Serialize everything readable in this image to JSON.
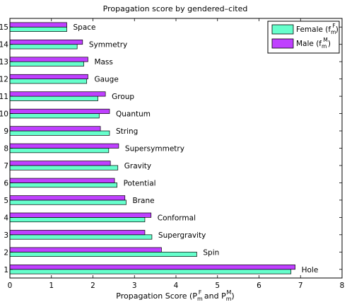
{
  "chart_data": {
    "type": "bar",
    "orientation": "horizontal",
    "title": "Propagation score by gendered–cited",
    "xlabel": {
      "prefix": "Propagation Score (P",
      "sub1": "m",
      "sup1": "F",
      "middle": " and P",
      "sub2": "m",
      "sup2": "M",
      "suffix": ")"
    },
    "ylabel": "",
    "xlim": [
      0,
      8
    ],
    "xticks": [
      0,
      1,
      2,
      3,
      4,
      5,
      6,
      7,
      8
    ],
    "ylim": [
      0.5,
      15.5
    ],
    "yticks": [
      1,
      2,
      3,
      4,
      5,
      6,
      7,
      8,
      9,
      10,
      11,
      12,
      13,
      14,
      15
    ],
    "grid": false,
    "legend_position": "top-right",
    "categories": [
      "Hole",
      "Spin",
      "Supergravity",
      "Conformal",
      "Brane",
      "Potential",
      "Gravity",
      "Supersymmetry",
      "String",
      "Quantum",
      "Group",
      "Gauge",
      "Mass",
      "Symmetry",
      "Space"
    ],
    "series": [
      {
        "name": "Female (f",
        "name_sub": "m",
        "name_sup": "F",
        "name_suffix": ")",
        "color": "#66ffcc",
        "values": [
          6.77,
          4.5,
          3.42,
          3.25,
          2.8,
          2.58,
          2.6,
          2.38,
          2.4,
          2.15,
          2.12,
          1.85,
          1.78,
          1.62,
          1.37
        ]
      },
      {
        "name": "Male (f",
        "name_sub": "m",
        "name_sup": "M",
        "name_suffix": ")",
        "color": "#bf40ff",
        "values": [
          6.87,
          3.65,
          3.25,
          3.4,
          2.77,
          2.52,
          2.42,
          2.62,
          2.18,
          2.4,
          2.3,
          1.88,
          1.88,
          1.75,
          1.37
        ]
      }
    ]
  }
}
